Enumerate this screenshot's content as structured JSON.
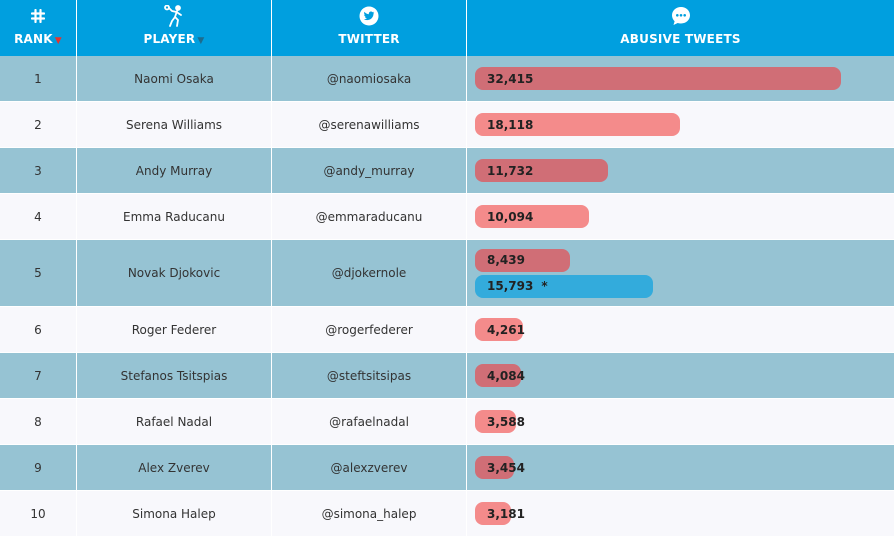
{
  "header": {
    "rank_label": "RANK",
    "player_label": "PLAYER",
    "twitter_label": "TWITTER",
    "tweets_label": "ABUSIVE TWEETS",
    "rank_icon": "hash-icon",
    "player_icon": "tennis-player-icon",
    "twitter_icon": "twitter-bird-icon",
    "tweets_icon": "speech-bubble-icon",
    "sort_up": "▲",
    "sort_down": "▼"
  },
  "colors": {
    "header_bg": "#009fdf",
    "row_alt": "#96c3d3",
    "row_plain": "#f8f8fc",
    "bar_light": "#f48b8b",
    "bar_dark": "#d06e76",
    "bar_blue": "#33abdc"
  },
  "chart_data": {
    "type": "table",
    "x_max": 40000,
    "columns": [
      "RANK",
      "PLAYER",
      "TWITTER",
      "ABUSIVE TWEETS"
    ],
    "rows": [
      {
        "rank": "1",
        "player": "Naomi Osaka",
        "twitter": "@naomiosaka",
        "bars": [
          {
            "value": 32415,
            "label": "32,415"
          }
        ]
      },
      {
        "rank": "2",
        "player": "Serena Williams",
        "twitter": "@serenawilliams",
        "bars": [
          {
            "value": 18118,
            "label": "18,118"
          }
        ]
      },
      {
        "rank": "3",
        "player": "Andy Murray",
        "twitter": "@andy_murray",
        "bars": [
          {
            "value": 11732,
            "label": "11,732"
          }
        ]
      },
      {
        "rank": "4",
        "player": "Emma Raducanu",
        "twitter": "@emmaraducanu",
        "bars": [
          {
            "value": 10094,
            "label": "10,094"
          }
        ]
      },
      {
        "rank": "5",
        "player": "Novak Djokovic",
        "twitter": "@djokernole",
        "bars": [
          {
            "value": 8439,
            "label": "8,439"
          },
          {
            "value": 15793,
            "label": "15,793",
            "note": "*",
            "style": "blue"
          }
        ]
      },
      {
        "rank": "6",
        "player": "Roger Federer",
        "twitter": "@rogerfederer",
        "bars": [
          {
            "value": 4261,
            "label": "4,261"
          }
        ]
      },
      {
        "rank": "7",
        "player": "Stefanos Tsitspias",
        "twitter": "@steftsitsipas",
        "bars": [
          {
            "value": 4084,
            "label": "4,084"
          }
        ]
      },
      {
        "rank": "8",
        "player": "Rafael Nadal",
        "twitter": "@rafaelnadal",
        "bars": [
          {
            "value": 3588,
            "label": "3,588"
          }
        ]
      },
      {
        "rank": "9",
        "player": "Alex Zverev",
        "twitter": "@alexzverev",
        "bars": [
          {
            "value": 3454,
            "label": "3,454"
          }
        ]
      },
      {
        "rank": "10",
        "player": "Simona Halep",
        "twitter": "@simona_halep",
        "bars": [
          {
            "value": 3181,
            "label": "3,181"
          }
        ]
      }
    ]
  }
}
